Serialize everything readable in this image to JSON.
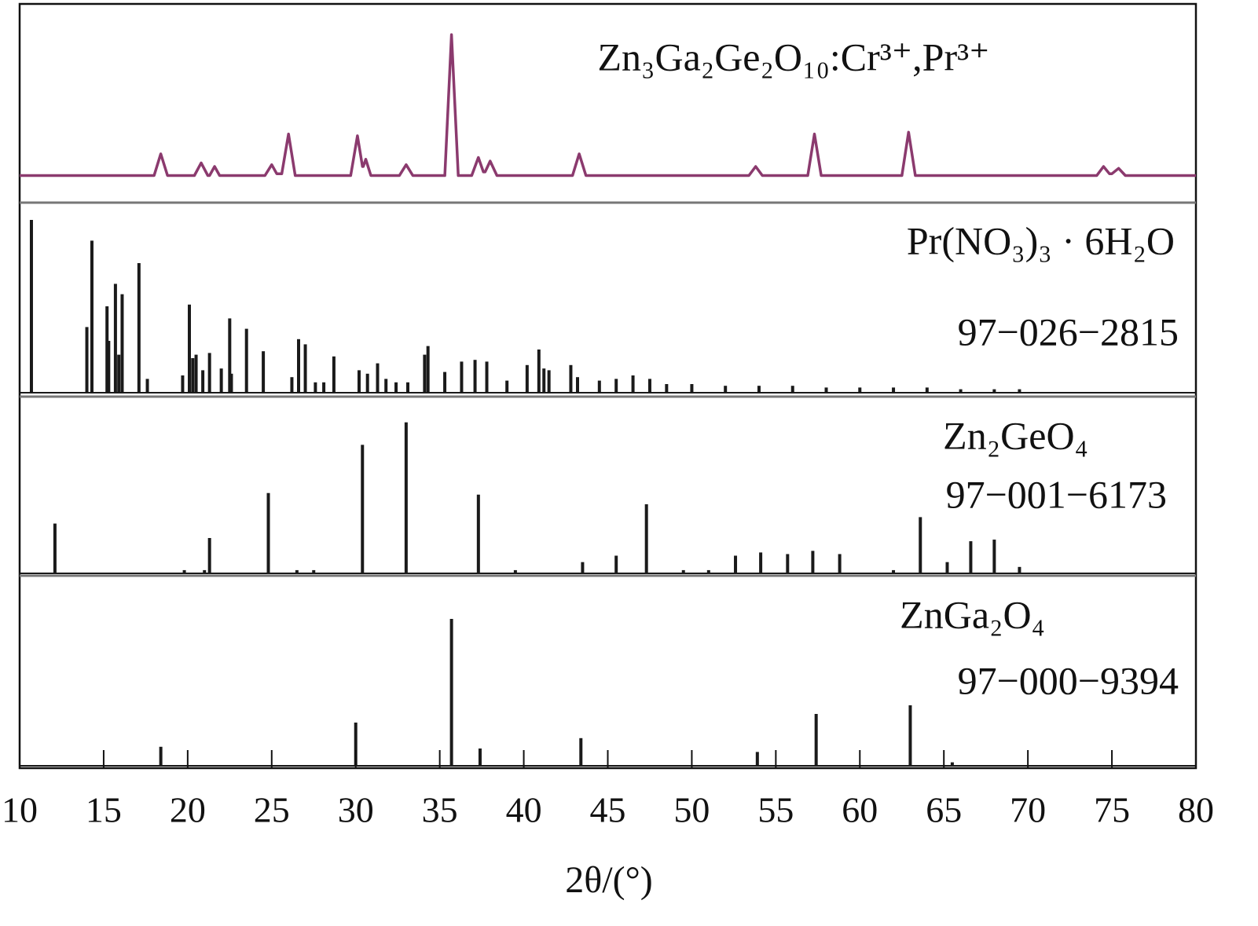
{
  "chart_data": [
    {
      "type": "line",
      "title": "Zn₃Ga₂Ge₂O₁₀:Cr³⁺,Pr³⁺",
      "color": "#8b3a6e",
      "ylim": [
        0,
        110
      ],
      "x": [
        10,
        18.0,
        18.4,
        18.8,
        20.4,
        20.8,
        21.2,
        21.3,
        21.6,
        21.9,
        24.6,
        25.0,
        25.3,
        25.6,
        26.0,
        26.4,
        29.7,
        30.1,
        30.4,
        30.45,
        30.6,
        30.9,
        32.6,
        33.0,
        33.4,
        35.3,
        35.7,
        36.1,
        36.9,
        37.3,
        37.6,
        37.7,
        38.0,
        38.4,
        42.9,
        43.3,
        43.7,
        53.4,
        53.8,
        54.2,
        56.9,
        57.3,
        57.7,
        62.5,
        62.9,
        63.3,
        74.1,
        74.5,
        74.85,
        75.0,
        75.4,
        75.8,
        80
      ],
      "values": [
        15,
        15,
        27,
        15,
        15,
        22,
        15,
        15,
        20,
        15,
        15,
        21,
        16,
        16,
        38,
        15,
        15,
        37,
        20,
        20,
        24,
        15,
        15,
        21,
        15,
        15,
        93,
        15,
        15,
        25,
        17,
        17,
        23,
        15,
        15,
        27,
        15,
        15,
        20,
        15,
        15,
        38,
        15,
        15,
        39,
        15,
        15,
        20,
        16,
        16,
        19,
        15,
        15
      ]
    },
    {
      "type": "stick",
      "title": "Pr(NO₃)₃ · 6H₂O",
      "subtitle": "97−026−2815",
      "color": "#1a1a1a",
      "ylim": [
        0,
        110
      ],
      "x": [
        10.7,
        14.0,
        14.3,
        15.2,
        15.3,
        15.7,
        15.9,
        16.1,
        17.1,
        17.6,
        19.7,
        20.1,
        20.3,
        20.5,
        20.9,
        21.3,
        22.0,
        22.5,
        22.6,
        23.5,
        24.5,
        26.2,
        26.6,
        27.0,
        27.6,
        28.1,
        28.7,
        30.2,
        30.7,
        31.3,
        31.8,
        32.4,
        33.1,
        34.1,
        34.3,
        35.3,
        36.3,
        37.1,
        37.8,
        39.0,
        40.2,
        40.9,
        41.2,
        41.5,
        42.8,
        43.2,
        44.5,
        45.5,
        46.5,
        47.5,
        48.5,
        50,
        52,
        54,
        56,
        58,
        60,
        62,
        64,
        66,
        68,
        69.5
      ],
      "values": [
        100,
        38,
        88,
        50,
        30,
        63,
        22,
        57,
        75,
        8,
        10,
        51,
        20,
        22,
        13,
        23,
        14,
        43,
        11,
        37,
        24,
        9,
        31,
        28,
        6,
        6,
        21,
        13,
        11,
        17,
        8,
        6,
        6,
        22,
        27,
        12,
        18,
        19,
        18,
        7,
        16,
        25,
        14,
        13,
        16,
        9,
        7,
        8,
        10,
        8,
        5,
        5,
        4,
        4,
        4,
        3,
        3,
        3,
        3,
        2,
        2,
        2
      ]
    },
    {
      "type": "stick",
      "title": "Zn₂GeO₄",
      "subtitle": "97−001−6173",
      "color": "#1a1a1a",
      "ylim": [
        0,
        110
      ],
      "x": [
        12.1,
        19.8,
        21.0,
        21.3,
        24.8,
        26.5,
        27.5,
        30.4,
        33.0,
        37.3,
        39.5,
        43.5,
        45.5,
        47.3,
        49.5,
        51.0,
        52.6,
        54.1,
        55.7,
        57.2,
        58.8,
        62.0,
        63.6,
        65.2,
        66.6,
        68.0,
        69.5
      ],
      "values": [
        31,
        2,
        2,
        22,
        50,
        2,
        2,
        80,
        94,
        49,
        2,
        7,
        11,
        43,
        2,
        2,
        11,
        13,
        12,
        14,
        12,
        2,
        35,
        7,
        20,
        21,
        4
      ]
    },
    {
      "type": "stick",
      "title": "ZnGa₂O₄",
      "subtitle": "97−000−9394",
      "color": "#1a1a1a",
      "ylim": [
        0,
        110
      ],
      "x": [
        18.4,
        30.0,
        35.7,
        37.4,
        43.4,
        53.9,
        57.4,
        63.0,
        65.5
      ],
      "values": [
        11,
        25,
        85,
        10,
        16,
        8,
        30,
        35,
        2
      ],
      "xlim": [
        10,
        80
      ],
      "xticks": [
        10,
        15,
        20,
        25,
        30,
        35,
        40,
        45,
        50,
        55,
        60,
        65,
        70,
        75,
        80
      ],
      "xlabel": "2θ/(°)"
    }
  ]
}
